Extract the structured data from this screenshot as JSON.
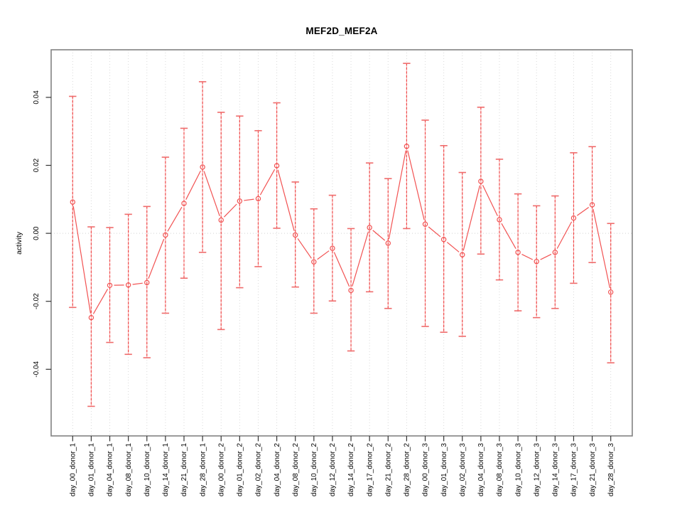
{
  "chart_data": {
    "type": "line",
    "title": "MEF2D_MEF2A",
    "xlabel": "",
    "ylabel": "activity",
    "marker": "open-circle",
    "legend": "none",
    "grid": {
      "vertical": "dotted line at every category",
      "horizontal": "dotted line at y=0 only"
    },
    "ylim": [
      -0.0596,
      0.054
    ],
    "yticks": [
      0.04,
      0.02,
      0.0,
      -0.02,
      -0.04
    ],
    "ytick_labels": [
      "0.04",
      "0.02",
      "0.00",
      "-0.02",
      "-0.04"
    ],
    "categories": [
      "day_00_donor_1",
      "day_01_donor_1",
      "day_04_donor_1",
      "day_08_donor_1",
      "day_10_donor_1",
      "day_14_donor_1",
      "day_21_donor_1",
      "day_28_donor_1",
      "day_00_donor_2",
      "day_01_donor_2",
      "day_02_donor_2",
      "day_04_donor_2",
      "day_08_donor_2",
      "day_10_donor_2",
      "day_12_donor_2",
      "day_14_donor_2",
      "day_17_donor_2",
      "day_21_donor_2",
      "day_28_donor_2",
      "day_00_donor_3",
      "day_01_donor_3",
      "day_02_donor_3",
      "day_04_donor_3",
      "day_08_donor_3",
      "day_10_donor_3",
      "day_12_donor_3",
      "day_14_donor_3",
      "day_17_donor_3",
      "day_21_donor_3",
      "day_28_donor_3"
    ],
    "series": [
      {
        "name": "mean_activity",
        "values": [
          0.0092,
          -0.0248,
          -0.0153,
          -0.0152,
          -0.0145,
          -0.0005,
          0.0088,
          0.0195,
          0.0039,
          0.0095,
          0.0102,
          0.0199,
          -0.0005,
          -0.0084,
          -0.0044,
          -0.0168,
          0.0017,
          -0.0029,
          0.0256,
          0.0027,
          -0.0018,
          -0.0063,
          0.0153,
          0.004,
          -0.0056,
          -0.0083,
          -0.0056,
          0.0045,
          0.0084,
          -0.0173
        ]
      },
      {
        "name": "error_upper",
        "values": [
          0.0403,
          0.0019,
          0.0017,
          0.0056,
          0.0079,
          0.0224,
          0.0309,
          0.0446,
          0.0356,
          0.0345,
          0.0302,
          0.0384,
          0.0151,
          0.0072,
          0.0112,
          0.0014,
          0.0207,
          0.0161,
          0.05,
          0.0333,
          0.0258,
          0.0179,
          0.0371,
          0.0218,
          0.0116,
          0.0081,
          0.011,
          0.0237,
          0.0255,
          0.0029
        ]
      },
      {
        "name": "error_lower",
        "values": [
          -0.0218,
          -0.0509,
          -0.0321,
          -0.0356,
          -0.0366,
          -0.0235,
          -0.0132,
          -0.0056,
          -0.0283,
          -0.016,
          -0.0098,
          0.0015,
          -0.0158,
          -0.0235,
          -0.0199,
          -0.0346,
          -0.0172,
          -0.0221,
          0.0014,
          -0.0274,
          -0.0291,
          -0.0303,
          -0.0061,
          -0.0137,
          -0.0228,
          -0.0248,
          -0.0221,
          -0.0147,
          -0.0086,
          -0.0381
        ]
      }
    ],
    "colors": {
      "series_line": "#f25252",
      "marker_stroke": "#f25252",
      "error_stem_dash": "#ef4848",
      "error_stem_base": "#f9a8a8",
      "error_cap": "#ef6b6b",
      "gridline": "#d9d9d9",
      "zero_line": "#d4d4d4",
      "plot_border": "#828282",
      "tick": "#333333",
      "text": "#000000"
    }
  }
}
